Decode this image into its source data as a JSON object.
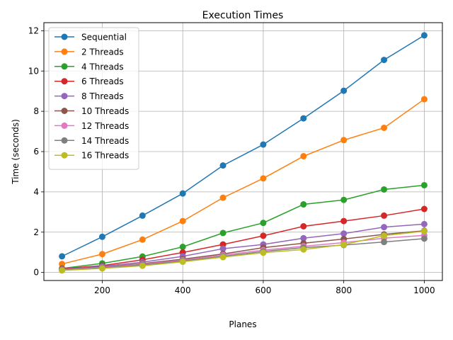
{
  "chart_data": {
    "type": "line",
    "title": "Execution Times",
    "xlabel": "Planes",
    "ylabel": "Time (seconds)",
    "xlim": [
      55,
      1045
    ],
    "ylim": [
      -0.4,
      12.4
    ],
    "xticks": [
      200,
      400,
      600,
      800,
      1000
    ],
    "yticks": [
      0,
      2,
      4,
      6,
      8,
      10,
      12
    ],
    "grid": true,
    "legend_position": "upper-left",
    "x": [
      100,
      200,
      300,
      400,
      500,
      600,
      700,
      800,
      900,
      1000
    ],
    "series": [
      {
        "name": "Sequential",
        "color": "#1f77b4",
        "values": [
          0.8,
          1.77,
          2.82,
          3.92,
          5.31,
          6.35,
          7.65,
          9.02,
          10.55,
          11.77
        ]
      },
      {
        "name": "2 Threads",
        "color": "#ff7f0e",
        "values": [
          0.42,
          0.91,
          1.63,
          2.55,
          3.71,
          4.67,
          5.77,
          6.57,
          7.18,
          8.6
        ]
      },
      {
        "name": "4 Threads",
        "color": "#2ca02c",
        "values": [
          0.2,
          0.45,
          0.79,
          1.27,
          1.96,
          2.46,
          3.38,
          3.6,
          4.12,
          4.33
        ]
      },
      {
        "name": "6 Threads",
        "color": "#d62728",
        "values": [
          0.18,
          0.34,
          0.63,
          0.99,
          1.39,
          1.82,
          2.29,
          2.55,
          2.82,
          3.15
        ]
      },
      {
        "name": "8 Threads",
        "color": "#9467bd",
        "values": [
          0.16,
          0.3,
          0.51,
          0.8,
          1.18,
          1.39,
          1.7,
          1.93,
          2.25,
          2.4
        ]
      },
      {
        "name": "10 Threads",
        "color": "#8c564b",
        "values": [
          0.14,
          0.26,
          0.44,
          0.66,
          0.92,
          1.23,
          1.45,
          1.66,
          1.89,
          2.07
        ]
      },
      {
        "name": "12 Threads",
        "color": "#e377c2",
        "values": [
          0.13,
          0.25,
          0.41,
          0.61,
          0.86,
          1.11,
          1.3,
          1.48,
          1.7,
          1.84
        ]
      },
      {
        "name": "14 Threads",
        "color": "#7f7f7f",
        "values": [
          0.12,
          0.23,
          0.37,
          0.57,
          0.8,
          1.04,
          1.23,
          1.36,
          1.51,
          1.68
        ]
      },
      {
        "name": "16 Threads",
        "color": "#bcbd22",
        "values": [
          0.1,
          0.2,
          0.33,
          0.53,
          0.76,
          0.98,
          1.14,
          1.38,
          1.83,
          2.05
        ]
      }
    ]
  }
}
